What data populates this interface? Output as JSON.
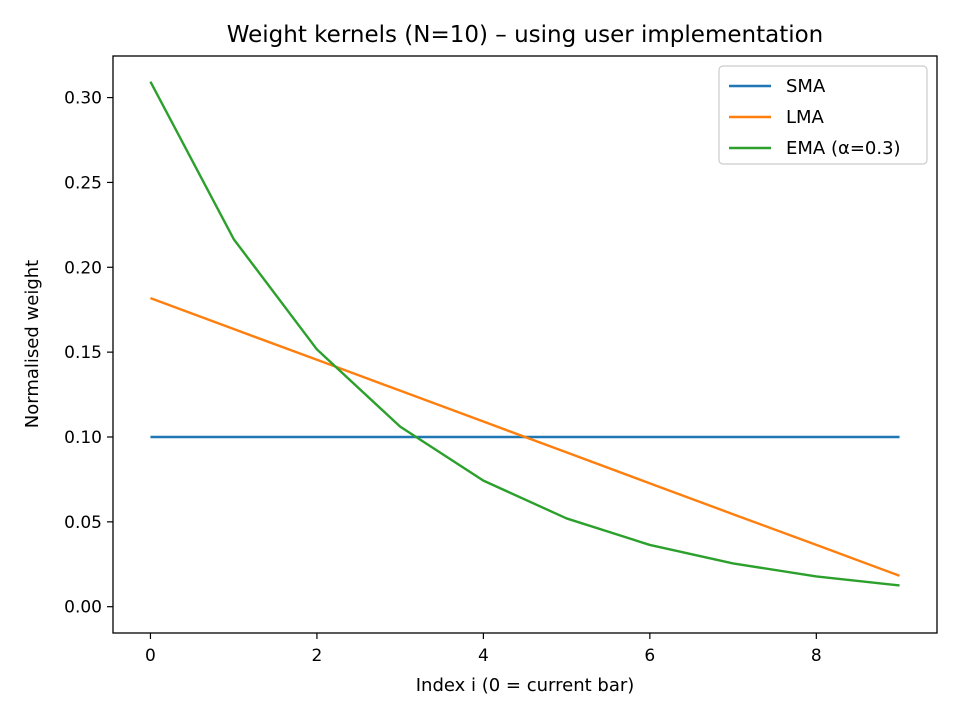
{
  "chart_data": {
    "type": "line",
    "title": "Weight kernels (N=10) – using user implementation",
    "xlabel": "Index i (0 = current bar)",
    "ylabel": "Normalised weight",
    "xlim": [
      -0.45,
      9.45
    ],
    "ylim": [
      -0.0155,
      0.3245
    ],
    "xticks": [
      0,
      2,
      4,
      6,
      8
    ],
    "xtick_labels": [
      "0",
      "2",
      "4",
      "6",
      "8"
    ],
    "yticks": [
      0.0,
      0.05,
      0.1,
      0.15,
      0.2,
      0.25,
      0.3
    ],
    "ytick_labels": [
      "0.00",
      "0.05",
      "0.10",
      "0.15",
      "0.20",
      "0.25",
      "0.30"
    ],
    "grid": false,
    "legend_position": "top-right",
    "x": [
      0,
      1,
      2,
      3,
      4,
      5,
      6,
      7,
      8,
      9
    ],
    "series": [
      {
        "name": "SMA",
        "color": "#1f77b4",
        "values": [
          0.1,
          0.1,
          0.1,
          0.1,
          0.1,
          0.1,
          0.1,
          0.1,
          0.1,
          0.1
        ]
      },
      {
        "name": "LMA",
        "color": "#ff7f0e",
        "values": [
          0.1818,
          0.1636,
          0.1455,
          0.1273,
          0.1091,
          0.0909,
          0.0727,
          0.0545,
          0.0364,
          0.0182
        ]
      },
      {
        "name": "EMA (α=0.3)",
        "color": "#2ca02c",
        "values": [
          0.3094,
          0.2166,
          0.1516,
          0.1061,
          0.0743,
          0.052,
          0.0364,
          0.0255,
          0.0178,
          0.0125
        ]
      }
    ]
  }
}
